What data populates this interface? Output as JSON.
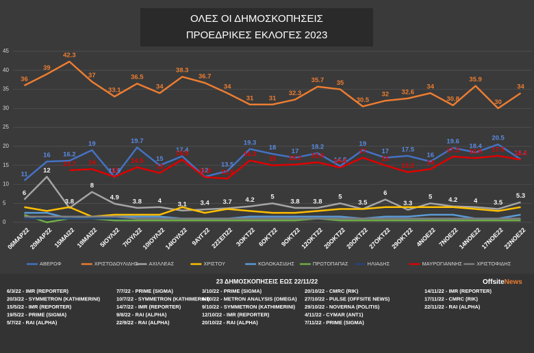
{
  "chart_data": {
    "type": "line",
    "title": "ΟΛΕΣ ΟΙ ΔΗΜΟΣΚΟΠΗΣΕΙΣ",
    "subtitle": "ΠΡΟΕΔΡΙΚΕΣ ΕΚΛΟΓΕΣ 2023",
    "categories": [
      "06ΜΑΡ22",
      "20ΜΑΡ22",
      "15ΜΑΙ22",
      "19ΜΑΙ22",
      "5ΙΟΥΛ22",
      "7ΙΟΥΛ22",
      "10ΙΟΥΛ22",
      "14ΙΟΥΛ22",
      "9ΑΥΓ22",
      "22ΣΕΠ22",
      "3ΟΚΤ22",
      "6ΟΚΤ22",
      "9ΟΚΤ22",
      "12ΟΚΤ22",
      "20ΟΚΤ22",
      "20ΟΚΤ22",
      "27ΟΚΤ22",
      "29ΟΚΤ22",
      "4ΝΟΕ22",
      "7ΝΟΕ22",
      "14ΝΟΕ22",
      "17ΝΟΕ22",
      "22ΝΟΕ22"
    ],
    "ylim": [
      0,
      45
    ],
    "yticks": [
      0,
      5,
      10,
      15,
      20,
      25,
      30,
      35,
      40,
      45
    ],
    "grid": true,
    "legend": "bottom",
    "series": [
      {
        "name": "ΑΒΕΡΩΦ",
        "color": "#4472c4",
        "data_labels": true,
        "label_color": "#5a8ae0",
        "values": [
          11,
          16,
          16.2,
          19,
          11.9,
          19.7,
          15,
          17.4,
          12,
          13.5,
          19.3,
          18,
          17,
          18.2,
          14.8,
          19,
          17,
          17.5,
          16,
          19.6,
          18.4,
          20.5,
          16.6
        ]
      },
      {
        "name": "ΧΡΙΣΤΟΔΟΥΛΙΔΗΣ",
        "color": "#ed7d31",
        "data_labels": true,
        "label_color": "#ed7d31",
        "values": [
          36,
          39,
          42.3,
          37,
          33.1,
          36.5,
          34,
          38.3,
          36.7,
          34,
          31,
          31,
          32.3,
          35.7,
          35,
          30.5,
          32,
          32.6,
          34,
          30.8,
          35.9,
          30,
          34
        ]
      },
      {
        "name": "ΑΧΙΛΛΕΑΣ",
        "color": "#a5a5a5",
        "data_labels": true,
        "label_color": "#f2f2f2",
        "values": [
          6,
          12,
          3.8,
          8,
          4.9,
          3.8,
          4,
          3.1,
          3.4,
          3.7,
          4.2,
          5,
          3.8,
          3.8,
          5,
          3.5,
          6,
          3.3,
          5,
          4.2,
          4,
          3.5,
          5.3
        ]
      },
      {
        "name": "ΧΡΙΣΤΟΥ",
        "color": "#ffc000",
        "data_labels": false,
        "values": [
          4,
          3,
          4,
          1.5,
          2,
          2,
          2,
          4,
          2.5,
          3.5,
          3,
          2.5,
          2.5,
          3,
          3.5,
          3.5,
          4,
          4,
          4,
          4,
          3.5,
          3,
          4
        ]
      },
      {
        "name": "ΚΟΛΟΚΑΣΙΔΗΣ",
        "color": "#5b9bd5",
        "data_labels": false,
        "values": [
          2.5,
          2.5,
          1,
          1.5,
          1.5,
          1.5,
          1.5,
          1,
          1,
          1,
          1.5,
          1.5,
          1.5,
          1.5,
          1.5,
          1,
          1.5,
          1.5,
          2,
          2,
          1,
          1,
          2
        ]
      },
      {
        "name": "ΠΡΩΤΟΠΑΠΑΣ",
        "color": "#70ad47",
        "data_labels": false,
        "values": [
          2,
          0,
          1,
          1,
          0.5,
          0.5,
          0.5,
          0.5,
          0.5,
          0.5,
          0.5,
          0.5,
          0.5,
          1,
          0.5,
          0.5,
          0.5,
          0.5,
          0.5,
          0.5,
          0.5,
          0.5,
          0.5
        ]
      },
      {
        "name": "ΗΛΙΑΔΗΣ",
        "color": "#264478",
        "data_labels": false,
        "values": [
          1,
          1,
          1,
          1,
          1,
          1,
          1,
          1,
          1,
          1,
          1,
          1,
          1,
          1,
          1,
          1,
          1,
          1,
          1,
          1,
          1,
          1,
          1
        ]
      },
      {
        "name": "ΜΑΥΡΟΓΙΑΝΝΗΣ",
        "color": "#e00000",
        "data_labels": true,
        "label_color": "#e00000",
        "values": [
          null,
          null,
          13.7,
          14,
          12,
          14.5,
          13,
          16.5,
          11.9,
          11.5,
          16.3,
          15,
          15.2,
          15.8,
          14.4,
          17,
          15,
          13.2,
          14,
          17.3,
          16.9,
          17.5,
          16.5
        ]
      },
      {
        "name": "ΧΡΙΣΤΟΦΙΔΗΣ",
        "color": "#7f7f7f",
        "data_labels": false,
        "values": [
          1.5,
          1.5,
          1.5,
          1.5,
          1.5,
          1,
          1,
          1,
          1,
          1,
          1,
          1,
          1,
          1,
          1,
          1,
          1,
          1,
          1,
          1,
          1,
          1,
          1
        ]
      }
    ]
  },
  "footer": {
    "summary": "23 ΔΗΜΟΣΚΟΠΗΣΕΙΣ ΕΩΣ  22/11/22",
    "brand": [
      "Offsite",
      "News"
    ],
    "polls": [
      [
        "6/3/22 - IMR (REPORTER)",
        "20/3/22 - SYMMETRON (KATHIMERINI)",
        "15/5/22 - IMR (REPORTER)",
        "19/5/22 - PRIME (SIGMA)",
        "5/7/22 - RAI (ALPHA)"
      ],
      [
        "7/7/22 - PRIME (SIGMA)",
        "10/7/22 - SYMMETRON (KATHIMERINI)",
        "14/7/22 - IMR (REPORTER)",
        "9/8/22 - RAI (ALPHA)",
        "22/9/22 - RAI (ALPHA)"
      ],
      [
        "3/10/22 - PRIME (SIGMA)",
        "6/10/22 - METRON ANALYSIS (OMEGA)",
        "9/10/22 - SYMMETRON (KATHIMERINI)",
        "12/10/22 - IMR (REPORTER)",
        "20/10/22 - RAI (ALPHA)"
      ],
      [
        "20/10/22 - CMRC (RIK)",
        "27/10/22 - PULSE (OFFSITE NEWS)",
        "29/10/22 - NOVERNA (POLITIS)",
        "4/11/22 - CYMAR (ANT1)",
        "7/11/22 - PRIME (SIGMA)"
      ],
      [
        "14/11/22 - IMR (REPORTER)",
        "17/11/22 - CMRC (RIK)",
        "22/11/22 - RAI (ALPHA)"
      ]
    ]
  }
}
